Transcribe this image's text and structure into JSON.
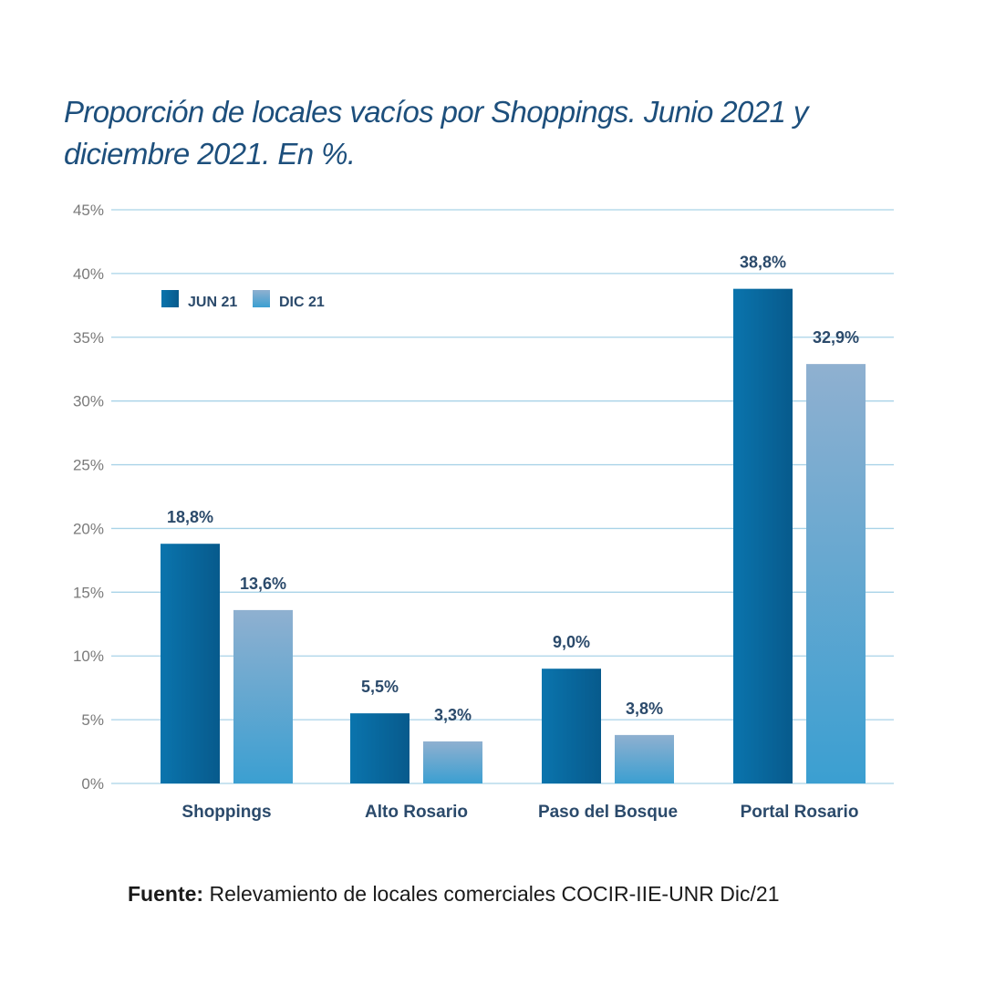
{
  "title": "Proporción de locales vacíos por Shoppings. Junio 2021 y diciembre 2021. En %.",
  "source": {
    "label": "Fuente:",
    "text": " Relevamiento de locales comerciales COCIR-IIE-UNR Dic/21"
  },
  "colors": {
    "title": "#1d4f7c",
    "labels": "#2b4a6b",
    "grid": "#a9d3e8",
    "axis_text": "#7a7a7a",
    "jun_light": "#0a74ad",
    "jun_dark": "#075a8c",
    "dic_top": "#8fb0d0",
    "dic_bottom": "#3b9fd1"
  },
  "chart_data": {
    "type": "bar",
    "title": "Proporción de locales vacíos por Shoppings. Junio 2021 y diciembre 2021. En %.",
    "xlabel": "",
    "ylabel": "",
    "categories": [
      "Shoppings",
      "Alto Rosario",
      "Paso del Bosque",
      "Portal Rosario"
    ],
    "series": [
      {
        "name": "JUN 21",
        "values": [
          18.8,
          5.5,
          9.0,
          38.8
        ],
        "labels": [
          "18,8%",
          "5,5%",
          "9,0%",
          "38,8%"
        ]
      },
      {
        "name": "DIC 21",
        "values": [
          13.6,
          3.3,
          3.8,
          32.9
        ],
        "labels": [
          "13,6%",
          "3,3%",
          "3,8%",
          "32,9%"
        ]
      }
    ],
    "ylim": [
      0,
      45
    ],
    "yticks": [
      0,
      5,
      10,
      15,
      20,
      25,
      30,
      35,
      40,
      45
    ],
    "ytick_labels": [
      "0%",
      "5%",
      "10%",
      "15%",
      "20%",
      "25%",
      "30%",
      "35%",
      "40%",
      "45%"
    ],
    "grid": true,
    "legend_position": "top-left"
  }
}
